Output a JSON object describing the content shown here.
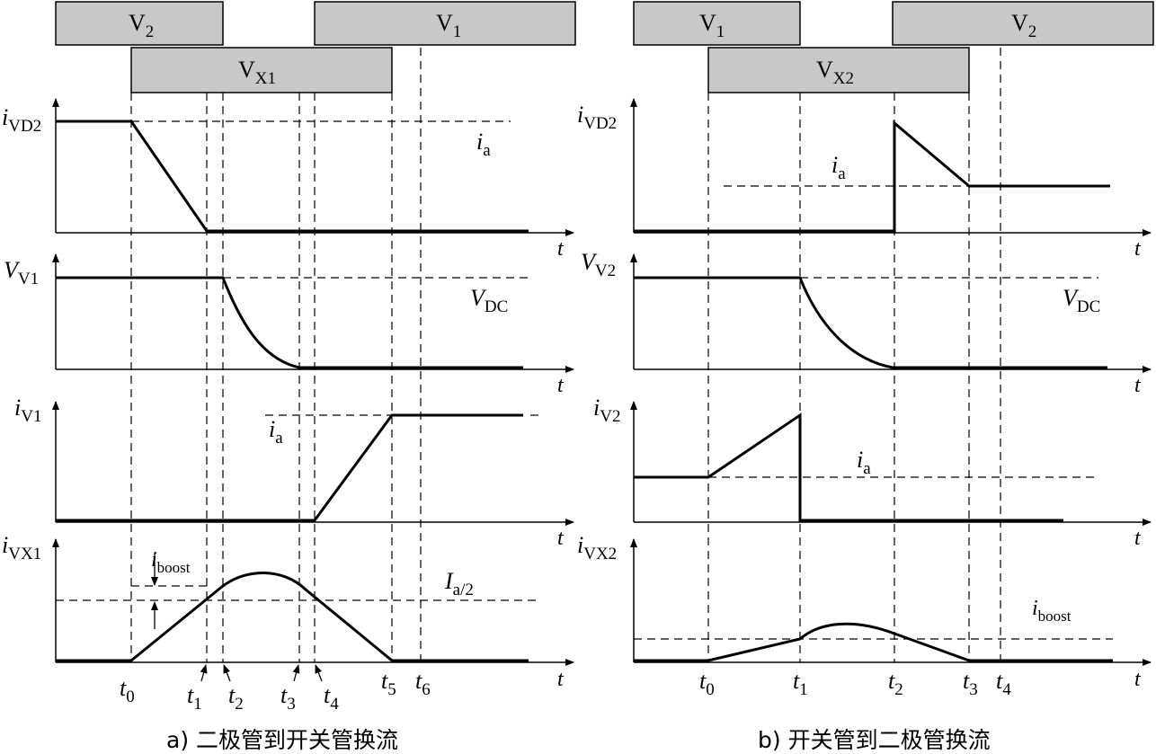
{
  "figure_a": {
    "caption": "a) 二极管到开关管换流",
    "bars": {
      "top_left": "V2",
      "top_right": "V1",
      "middle": "VX1"
    },
    "waveforms": {
      "current_diode": {
        "axis": "iVD2",
        "level": "ia"
      },
      "voltage_switch": {
        "axis": "VV1",
        "level": "VDC"
      },
      "current_switch": {
        "axis": "iV1",
        "level": "ia"
      },
      "current_aux": {
        "axis": "iVX1",
        "boost": "iboost",
        "level": "Ia/2"
      }
    },
    "time_axis_label": "t",
    "time_marks": [
      "t0",
      "t1",
      "t2",
      "t3",
      "t4",
      "t5",
      "t6"
    ]
  },
  "figure_b": {
    "caption": "b) 开关管到二极管换流",
    "bars": {
      "top_left": "V1",
      "top_right": "V2",
      "middle": "VX2"
    },
    "waveforms": {
      "current_diode": {
        "axis": "iVD2",
        "level": "ia"
      },
      "voltage_switch": {
        "axis": "VV2",
        "level": "VDC"
      },
      "current_switch": {
        "axis": "iV2",
        "level": "ia"
      },
      "current_aux": {
        "axis": "iVX2",
        "boost": "iboost"
      }
    },
    "time_axis_label": "t",
    "time_marks": [
      "t0",
      "t1",
      "t2",
      "t3",
      "t4"
    ]
  },
  "colors": {
    "bar_fill": "#c8c8c8",
    "ink": "#000000"
  }
}
